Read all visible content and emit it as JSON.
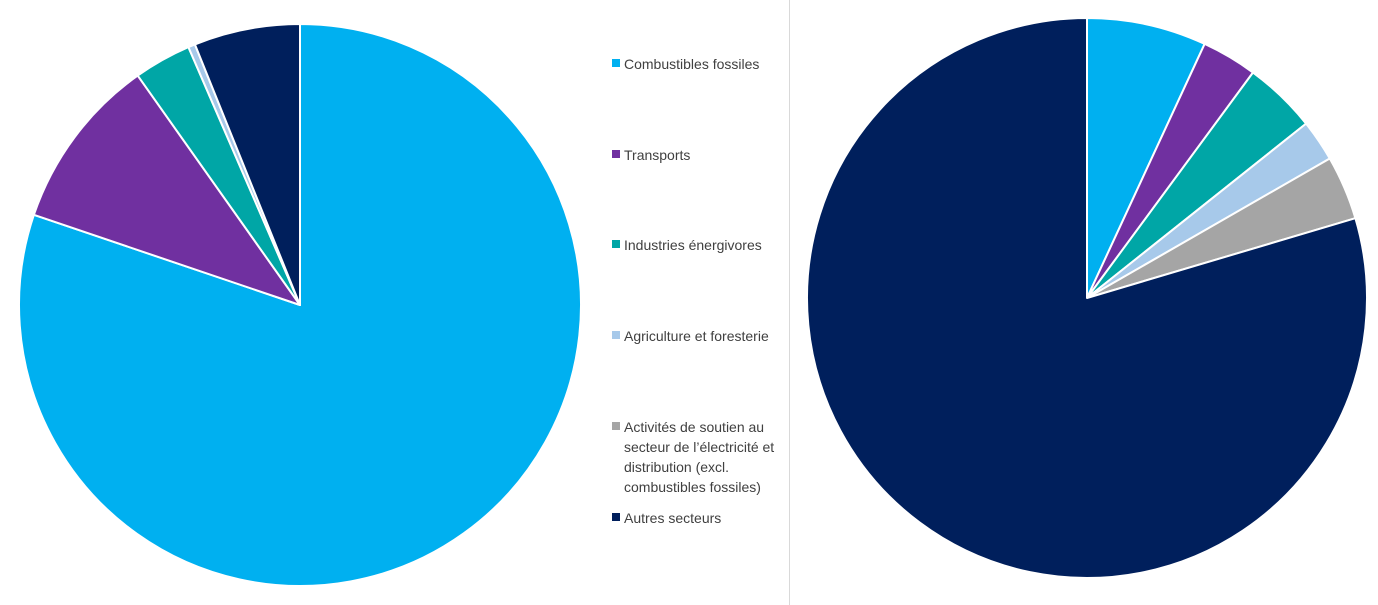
{
  "legend": {
    "items": [
      {
        "label": "Combustibles fossiles",
        "color": "#00b0f0"
      },
      {
        "label": "Transports",
        "color": "#7030a0"
      },
      {
        "label": "Industries énergivores",
        "color": "#00a6a6"
      },
      {
        "label": "Agriculture et foresterie",
        "color": "#a7c9ea"
      },
      {
        "label": "Activités de soutien au secteur de l’électricité et distribution (excl. combustibles fossiles)",
        "color": "#a5a5a5"
      },
      {
        "label": "Autres secteurs",
        "color": "#001f5c"
      }
    ]
  },
  "chart_data": [
    {
      "type": "pie",
      "categories": [
        "Combustibles fossiles",
        "Transports",
        "Industries énergivores",
        "Agriculture et foresterie",
        "Activités de soutien au secteur de l’électricité et distribution (excl. combustibles fossiles)",
        "Autres secteurs"
      ],
      "values": [
        80.2,
        10.0,
        3.3,
        0.4,
        0.0,
        6.1
      ],
      "colors": [
        "#00b0f0",
        "#7030a0",
        "#00a6a6",
        "#a7c9ea",
        "#a5a5a5",
        "#001f5c"
      ]
    },
    {
      "type": "pie",
      "categories": [
        "Combustibles fossiles",
        "Transports",
        "Industries énergivores",
        "Agriculture et foresterie",
        "Activités de soutien au secteur de l’électricité et distribution (excl. combustibles fossiles)",
        "Autres secteurs"
      ],
      "values": [
        6.9,
        3.2,
        4.2,
        2.4,
        3.7,
        79.6
      ],
      "colors": [
        "#00b0f0",
        "#7030a0",
        "#00a6a6",
        "#a7c9ea",
        "#a5a5a5",
        "#001f5c"
      ]
    }
  ]
}
